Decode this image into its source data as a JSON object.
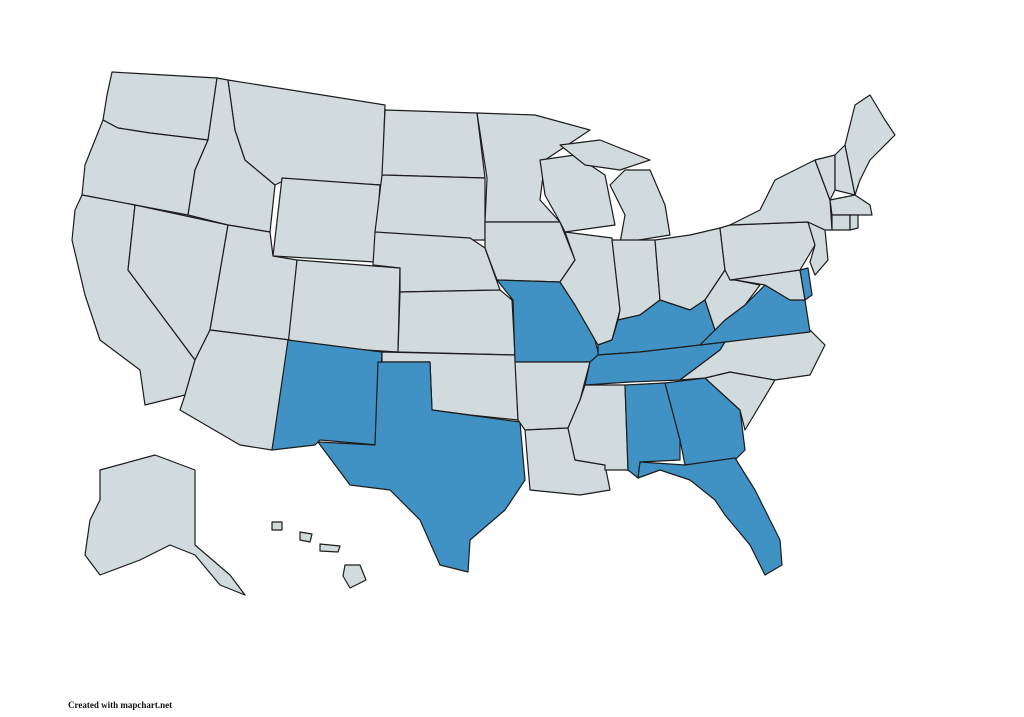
{
  "colors": {
    "default": "#d1dbde",
    "highlight": "#4192c4",
    "border": "#1c1c1c"
  },
  "highlighted": [
    "NM",
    "TX",
    "MO",
    "KY",
    "TN",
    "AL",
    "GA",
    "FL",
    "VA",
    "DE"
  ],
  "states": [
    "WA",
    "OR",
    "CA",
    "NV",
    "ID",
    "MT",
    "WY",
    "UT",
    "CO",
    "AZ",
    "NM",
    "ND",
    "SD",
    "NE",
    "KS",
    "OK",
    "TX",
    "MN",
    "IA",
    "MO",
    "AR",
    "LA",
    "WI",
    "IL",
    "MI-L",
    "MI-U",
    "IN",
    "OH",
    "KY",
    "TN",
    "MS",
    "AL",
    "GA",
    "FL",
    "SC",
    "NC",
    "VA",
    "WV",
    "MD",
    "DE",
    "PA",
    "NJ",
    "NY",
    "VT",
    "NH",
    "ME",
    "MA",
    "CT",
    "RI",
    "AK",
    "HI-1",
    "HI-2",
    "HI-3",
    "HI-4"
  ],
  "credit": "Created with mapchart.net"
}
